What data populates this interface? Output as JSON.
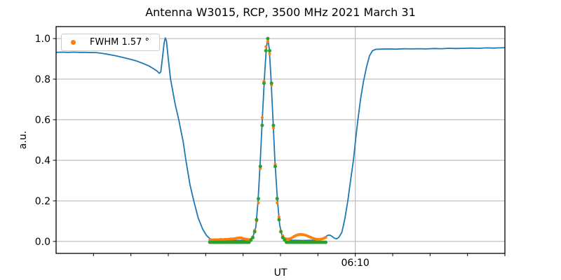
{
  "title": "Antenna W3015, RCP, 3500 MHz 2021 March 31",
  "axes": {
    "xlabel": "UT",
    "ylabel": "a.u."
  },
  "legend": {
    "label": "FWHM 1.57 °",
    "marker_color": "#ff7f0e"
  },
  "colors": {
    "line_blue": "#1f77b4",
    "scatter_orange": "#ff7f0e",
    "scatter_green": "#2ca02c",
    "grid": "#b0b0b0",
    "spine": "#000000"
  },
  "chart_data": {
    "type": "line",
    "title": "Antenna W3015, RCP, 3500 MHz 2021 March 31",
    "xlabel": "UT",
    "ylabel": "a.u.",
    "x_unit": "minutes from left edge of axis; the labeled tick 06:10 is at x=40",
    "xlim": [
      0,
      60
    ],
    "ylim": [
      -0.059,
      1.059
    ],
    "grid": {
      "horizontal": true,
      "vertical_on_major_x_only": true,
      "color": "#b0b0b0"
    },
    "legend_position": "upper left",
    "legend_entries": [
      {
        "label": "FWHM 1.57 °",
        "color": "#ff7f0e",
        "marker": "dot"
      }
    ],
    "y_ticks": [
      {
        "value": 0.0,
        "label": "0.0"
      },
      {
        "value": 0.2,
        "label": "0.2"
      },
      {
        "value": 0.4,
        "label": "0.4"
      },
      {
        "value": 0.6,
        "label": "0.6"
      },
      {
        "value": 0.8,
        "label": "0.8"
      },
      {
        "value": 1.0,
        "label": "1.0"
      }
    ],
    "x_major_ticks": [
      {
        "value": 40,
        "label": "06:10"
      }
    ],
    "x_minor_ticks": [
      5,
      10,
      15,
      20,
      25,
      30,
      35,
      45,
      50,
      55,
      60
    ],
    "series": [
      {
        "name": "blue-line",
        "type": "line",
        "color": "#1f77b4",
        "width": 1.8,
        "points": [
          [
            0,
            0.932
          ],
          [
            0.8,
            0.933
          ],
          [
            1.6,
            0.932
          ],
          [
            2.4,
            0.933
          ],
          [
            3.2,
            0.932
          ],
          [
            4.0,
            0.932
          ],
          [
            4.8,
            0.931
          ],
          [
            5.3,
            0.931
          ],
          [
            6.0,
            0.928
          ],
          [
            7.0,
            0.922
          ],
          [
            8.0,
            0.915
          ],
          [
            9.0,
            0.906
          ],
          [
            10.0,
            0.897
          ],
          [
            10.8,
            0.889
          ],
          [
            11.6,
            0.878
          ],
          [
            12.4,
            0.865
          ],
          [
            13.0,
            0.852
          ],
          [
            13.5,
            0.84
          ],
          [
            13.8,
            0.829
          ],
          [
            14.0,
            0.836
          ],
          [
            14.2,
            0.9
          ],
          [
            14.45,
            0.98
          ],
          [
            14.6,
            1.003
          ],
          [
            14.75,
            0.99
          ],
          [
            15.0,
            0.9
          ],
          [
            15.3,
            0.8
          ],
          [
            15.9,
            0.68
          ],
          [
            16.4,
            0.6
          ],
          [
            17.0,
            0.49
          ],
          [
            17.35,
            0.4
          ],
          [
            17.9,
            0.28
          ],
          [
            18.4,
            0.2
          ],
          [
            19.0,
            0.115
          ],
          [
            19.6,
            0.06
          ],
          [
            20.1,
            0.03
          ],
          [
            20.6,
            0.012
          ],
          [
            21.5,
            0.006
          ],
          [
            23.0,
            0.005
          ],
          [
            24.5,
            0.005
          ],
          [
            25.8,
            0.007
          ],
          [
            26.3,
            0.02
          ],
          [
            26.7,
            0.07
          ],
          [
            27.0,
            0.2
          ],
          [
            27.3,
            0.4
          ],
          [
            27.56,
            0.6
          ],
          [
            27.84,
            0.8
          ],
          [
            28.1,
            0.95
          ],
          [
            28.3,
            1.002
          ],
          [
            28.5,
            0.95
          ],
          [
            28.73,
            0.8
          ],
          [
            29.0,
            0.6
          ],
          [
            29.25,
            0.4
          ],
          [
            29.6,
            0.2
          ],
          [
            29.9,
            0.08
          ],
          [
            30.2,
            0.03
          ],
          [
            30.6,
            0.01
          ],
          [
            31.5,
            0.006
          ],
          [
            33.0,
            0.005
          ],
          [
            34.5,
            0.006
          ],
          [
            35.5,
            0.01
          ],
          [
            35.9,
            0.02
          ],
          [
            36.3,
            0.03
          ],
          [
            36.6,
            0.031
          ],
          [
            36.9,
            0.025
          ],
          [
            37.2,
            0.016
          ],
          [
            37.5,
            0.013
          ],
          [
            37.8,
            0.02
          ],
          [
            38.2,
            0.045
          ],
          [
            38.6,
            0.11
          ],
          [
            39.0,
            0.2
          ],
          [
            39.4,
            0.31
          ],
          [
            39.75,
            0.4
          ],
          [
            40.1,
            0.52
          ],
          [
            40.35,
            0.6
          ],
          [
            40.7,
            0.7
          ],
          [
            41.1,
            0.79
          ],
          [
            41.5,
            0.86
          ],
          [
            41.9,
            0.915
          ],
          [
            42.3,
            0.94
          ],
          [
            42.7,
            0.947
          ],
          [
            43.5,
            0.948
          ],
          [
            44.5,
            0.949
          ],
          [
            45.5,
            0.948
          ],
          [
            46.5,
            0.95
          ],
          [
            47.5,
            0.949
          ],
          [
            48.5,
            0.95
          ],
          [
            49.5,
            0.949
          ],
          [
            50.5,
            0.951
          ],
          [
            51.5,
            0.95
          ],
          [
            52.5,
            0.952
          ],
          [
            53.5,
            0.951
          ],
          [
            54.5,
            0.952
          ],
          [
            55.5,
            0.953
          ],
          [
            56.5,
            0.952
          ],
          [
            57.5,
            0.954
          ],
          [
            58.5,
            0.953
          ],
          [
            59.2,
            0.954
          ],
          [
            60,
            0.955
          ]
        ]
      },
      {
        "name": "orange-points",
        "type": "scatter",
        "color": "#ff7f0e",
        "radius": 2.1,
        "points": [
          [
            20.55,
            0.007
          ],
          [
            20.8,
            0.008
          ],
          [
            21.05,
            0.008
          ],
          [
            21.3,
            0.009
          ],
          [
            21.55,
            0.008
          ],
          [
            21.8,
            0.009
          ],
          [
            22.05,
            0.01
          ],
          [
            22.3,
            0.009
          ],
          [
            22.55,
            0.01
          ],
          [
            22.8,
            0.01
          ],
          [
            23.05,
            0.011
          ],
          [
            23.3,
            0.012
          ],
          [
            23.55,
            0.012
          ],
          [
            23.8,
            0.013
          ],
          [
            24.05,
            0.015
          ],
          [
            24.3,
            0.017
          ],
          [
            24.55,
            0.018
          ],
          [
            24.8,
            0.017
          ],
          [
            25.05,
            0.014
          ],
          [
            25.3,
            0.012
          ],
          [
            25.55,
            0.01
          ],
          [
            25.8,
            0.009
          ],
          [
            26.05,
            0.01
          ],
          [
            26.3,
            0.022
          ],
          [
            26.55,
            0.055
          ],
          [
            26.8,
            0.1
          ],
          [
            27.05,
            0.19
          ],
          [
            27.3,
            0.36
          ],
          [
            27.55,
            0.61
          ],
          [
            27.8,
            0.79
          ],
          [
            28.05,
            0.96
          ],
          [
            28.3,
            0.985
          ],
          [
            28.55,
            0.925
          ],
          [
            28.8,
            0.77
          ],
          [
            29.05,
            0.56
          ],
          [
            29.3,
            0.38
          ],
          [
            29.55,
            0.19
          ],
          [
            29.8,
            0.12
          ],
          [
            30.05,
            0.052
          ],
          [
            30.3,
            0.028
          ],
          [
            30.55,
            0.015
          ],
          [
            30.8,
            0.012
          ],
          [
            31.05,
            0.012
          ],
          [
            31.3,
            0.014
          ],
          [
            31.55,
            0.018
          ],
          [
            31.8,
            0.024
          ],
          [
            32.05,
            0.029
          ],
          [
            32.3,
            0.032
          ],
          [
            32.55,
            0.034
          ],
          [
            32.8,
            0.034
          ],
          [
            33.05,
            0.033
          ],
          [
            33.3,
            0.031
          ],
          [
            33.55,
            0.028
          ],
          [
            33.8,
            0.024
          ],
          [
            34.05,
            0.02
          ],
          [
            34.3,
            0.016
          ],
          [
            34.55,
            0.013
          ],
          [
            34.8,
            0.011
          ],
          [
            35.05,
            0.01
          ],
          [
            35.3,
            0.01
          ],
          [
            35.55,
            0.012
          ],
          [
            35.8,
            0.016
          ],
          [
            36.05,
            0.02
          ]
        ]
      },
      {
        "name": "green-points",
        "type": "scatter",
        "color": "#2ca02c",
        "radius": 2.5,
        "points": [
          [
            20.55,
            -0.004
          ],
          [
            20.8,
            -0.004
          ],
          [
            21.05,
            -0.004
          ],
          [
            21.3,
            -0.004
          ],
          [
            21.55,
            -0.004
          ],
          [
            21.8,
            -0.004
          ],
          [
            22.05,
            -0.004
          ],
          [
            22.3,
            -0.004
          ],
          [
            22.55,
            -0.004
          ],
          [
            22.8,
            -0.004
          ],
          [
            23.05,
            -0.004
          ],
          [
            23.3,
            -0.004
          ],
          [
            23.55,
            -0.004
          ],
          [
            23.8,
            -0.004
          ],
          [
            24.05,
            -0.004
          ],
          [
            24.3,
            -0.004
          ],
          [
            24.55,
            -0.004
          ],
          [
            24.8,
            -0.004
          ],
          [
            25.05,
            -0.004
          ],
          [
            25.3,
            -0.004
          ],
          [
            25.55,
            -0.004
          ],
          [
            25.8,
            -0.004
          ],
          [
            26.05,
            0.007
          ],
          [
            26.3,
            0.019
          ],
          [
            26.55,
            0.048
          ],
          [
            26.8,
            0.107
          ],
          [
            27.05,
            0.211
          ],
          [
            27.3,
            0.37
          ],
          [
            27.55,
            0.572
          ],
          [
            27.8,
            0.78
          ],
          [
            28.05,
            0.94
          ],
          [
            28.3,
            1.0
          ],
          [
            28.55,
            0.94
          ],
          [
            28.8,
            0.78
          ],
          [
            29.05,
            0.572
          ],
          [
            29.3,
            0.37
          ],
          [
            29.55,
            0.211
          ],
          [
            29.8,
            0.107
          ],
          [
            30.05,
            0.048
          ],
          [
            30.3,
            0.019
          ],
          [
            30.55,
            0.007
          ],
          [
            30.8,
            -0.004
          ],
          [
            31.05,
            -0.004
          ],
          [
            31.3,
            -0.004
          ],
          [
            31.55,
            -0.004
          ],
          [
            31.8,
            -0.004
          ],
          [
            32.05,
            -0.004
          ],
          [
            32.3,
            -0.004
          ],
          [
            32.55,
            -0.004
          ],
          [
            32.8,
            -0.004
          ],
          [
            33.05,
            -0.004
          ],
          [
            33.3,
            -0.004
          ],
          [
            33.55,
            -0.004
          ],
          [
            33.8,
            -0.004
          ],
          [
            34.05,
            -0.004
          ],
          [
            34.3,
            -0.004
          ],
          [
            34.55,
            -0.004
          ],
          [
            34.8,
            -0.004
          ],
          [
            35.05,
            -0.004
          ],
          [
            35.3,
            -0.004
          ],
          [
            35.55,
            -0.004
          ],
          [
            35.8,
            -0.004
          ],
          [
            36.05,
            -0.004
          ]
        ]
      }
    ]
  }
}
